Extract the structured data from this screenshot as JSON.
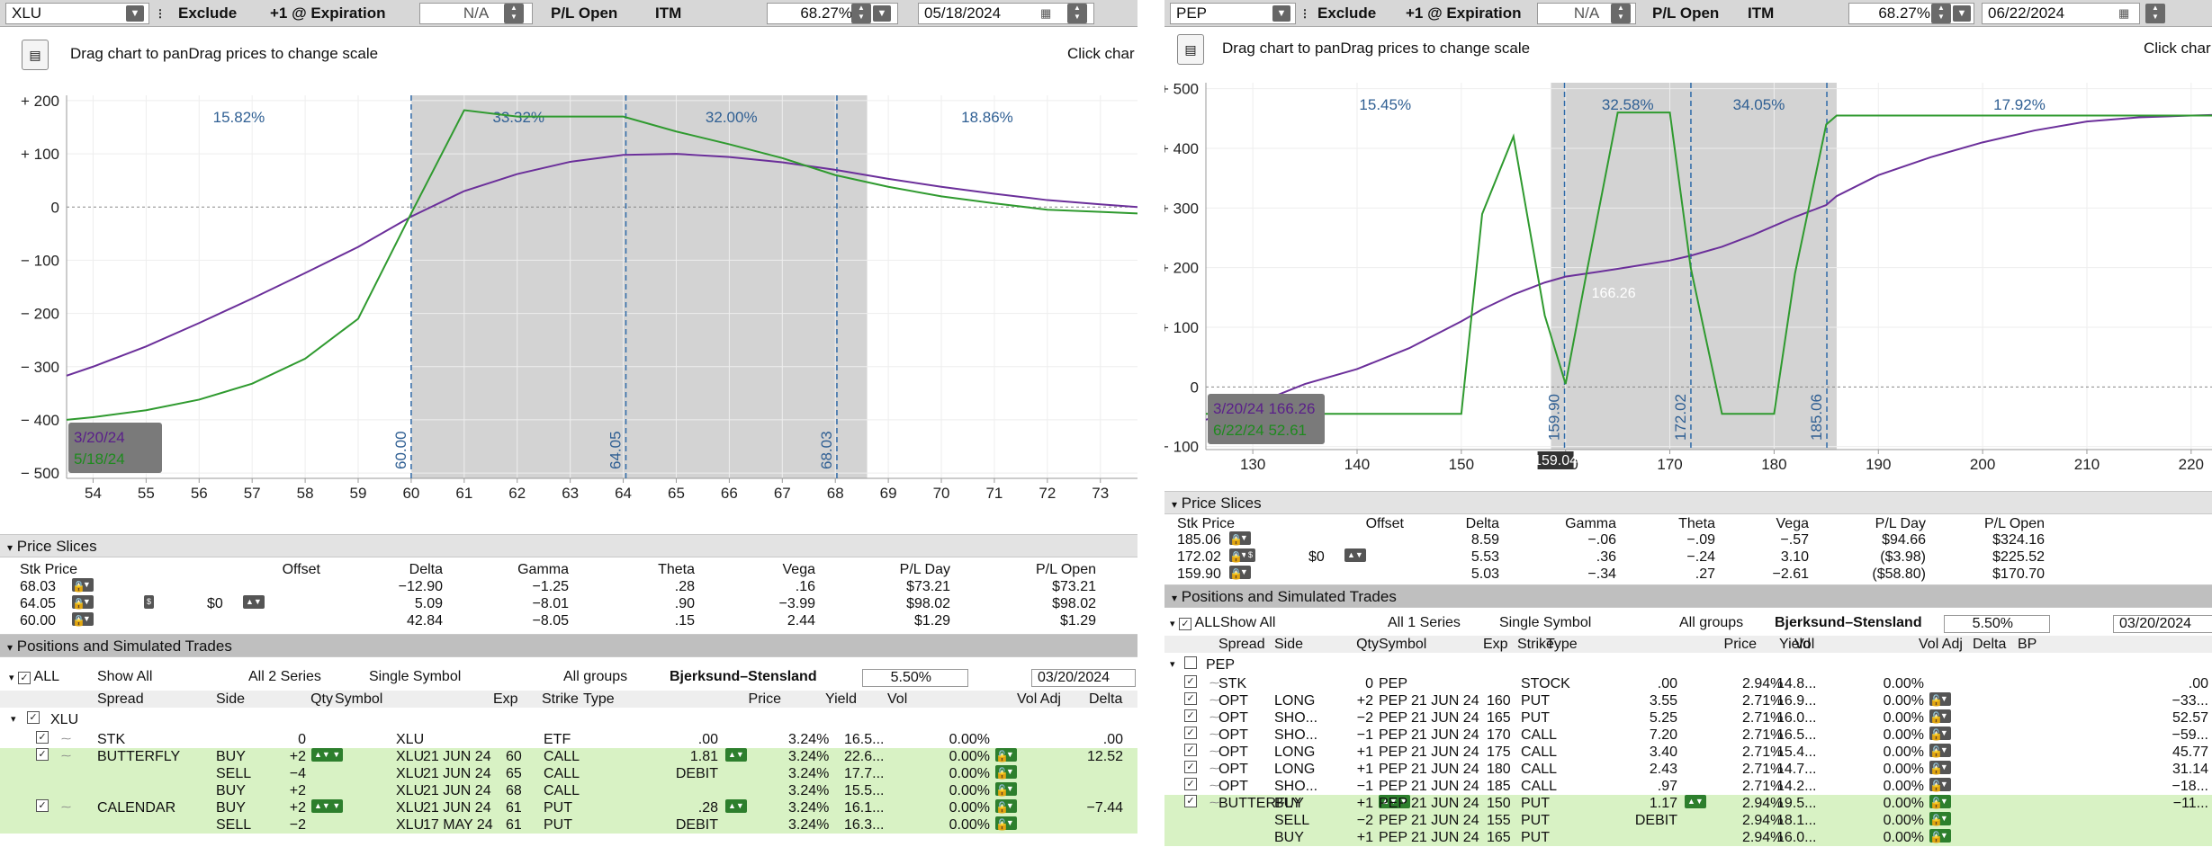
{
  "left": {
    "toolbar": {
      "symbol": "XLU",
      "exclude": "Exclude",
      "expiration": "+1 @ Expiration",
      "na": "N/A",
      "pl": "P/L Open",
      "itm": "ITM",
      "pct": "68.27%",
      "date": "05/18/2024"
    },
    "hint": {
      "drag": "Drag chart to panDrag prices to change scale",
      "click": "Click char"
    },
    "chart_data": {
      "type": "line",
      "x": [
        53.5,
        54,
        55,
        56,
        57,
        58,
        59,
        60,
        61,
        62,
        63,
        64,
        65,
        66,
        67,
        68,
        69,
        70,
        71,
        72,
        73,
        73.7
      ],
      "xticks": [
        "54",
        "55",
        "56",
        "57",
        "58",
        "59",
        "60",
        "61",
        "62",
        "63",
        "64",
        "65",
        "66",
        "67",
        "68",
        "69",
        "70",
        "71",
        "72",
        "73"
      ],
      "yticks": [
        "+ 200",
        "+ 100",
        "0",
        "− 100",
        "− 200",
        "− 300",
        "− 400",
        "− 500"
      ],
      "ylim": [
        -510,
        210
      ],
      "series": [
        {
          "values": [
            -317,
            -300,
            -262,
            -218,
            -172,
            -124,
            -75,
            -18,
            30,
            62,
            85,
            98,
            100,
            94,
            84,
            70,
            53,
            38,
            25,
            13,
            5,
            0
          ]
        },
        {
          "values": [
            -400,
            -395,
            -382,
            -362,
            -332,
            -285,
            -210,
            -12,
            182,
            170,
            170,
            170,
            142,
            118,
            92,
            60,
            38,
            20,
            7,
            -5,
            -9,
            -12
          ]
        }
      ],
      "band": [
        60,
        68.6
      ],
      "strikes": [
        {
          "x": 60,
          "label": "60.00"
        },
        {
          "x": 64.05,
          "label": "64.05"
        },
        {
          "x": 68.03,
          "label": "68.03"
        }
      ],
      "zones": [
        "15.82%",
        "33.32%",
        "32.00%",
        "18.86%"
      ],
      "legend": [
        "3/20/24",
        "5/18/24"
      ]
    },
    "price_slices": {
      "title": "Price Slices",
      "headers": [
        "Stk Price",
        "Offset",
        "Delta",
        "Gamma",
        "Theta",
        "Vega",
        "P/L Day",
        "P/L Open"
      ],
      "offset": "$0",
      "rows": [
        [
          "68.03",
          "−12.90",
          "−1.25",
          ".28",
          ".16",
          "$73.21",
          "$73.21"
        ],
        [
          "64.05",
          "5.09",
          "−8.01",
          ".90",
          "−3.99",
          "$98.02",
          "$98.02"
        ],
        [
          "60.00",
          "42.84",
          "−8.05",
          ".15",
          "2.44",
          "$1.29",
          "$1.29"
        ]
      ]
    },
    "positions": {
      "title": "Positions and Simulated Trades",
      "filters": {
        "all": "ALL",
        "show": "Show All",
        "series": "All 2 Series",
        "sym": "Single Symbol",
        "groups": "All groups",
        "model": "Bjerksund–Stensland",
        "rate": "5.50%",
        "date": "03/20/2024"
      },
      "headers": [
        "Spread",
        "Side",
        "Qty",
        "Symbol",
        "Exp",
        "Strike",
        "Type",
        "Price",
        "Yield",
        "Vol",
        "Vol Adj",
        "Delta"
      ],
      "group": "XLU",
      "rows": [
        {
          "spread": "STK",
          "side": "",
          "qty": "0",
          "sym": "XLU",
          "exp": "",
          "strike": "",
          "type": "ETF",
          "price": ".00",
          "yield": "3.24%",
          "vol": "16.5...",
          "voladj": "0.00%",
          "delta": ".00"
        },
        {
          "spread": "BUTTERFLY",
          "side": "BUY",
          "qty": "+2",
          "sym": "XLU",
          "exp": "21 JUN 24",
          "strike": "60",
          "type": "CALL",
          "price": "1.81",
          "yield": "3.24%",
          "vol": "22.6...",
          "voladj": "0.00%",
          "delta": "12.52"
        },
        {
          "spread": "",
          "side": "SELL",
          "qty": "−4",
          "sym": "XLU",
          "exp": "21 JUN 24",
          "strike": "65",
          "type": "CALL",
          "price": "DEBIT",
          "yield": "3.24%",
          "vol": "17.7...",
          "voladj": "0.00%",
          "delta": ""
        },
        {
          "spread": "",
          "side": "BUY",
          "qty": "+2",
          "sym": "XLU",
          "exp": "21 JUN 24",
          "strike": "68",
          "type": "CALL",
          "price": "",
          "yield": "3.24%",
          "vol": "15.5...",
          "voladj": "0.00%",
          "delta": ""
        },
        {
          "spread": "CALENDAR",
          "side": "BUY",
          "qty": "+2",
          "sym": "XLU",
          "exp": "21 JUN 24",
          "strike": "61",
          "type": "PUT",
          "price": ".28",
          "yield": "3.24%",
          "vol": "16.1...",
          "voladj": "0.00%",
          "delta": "−7.44"
        },
        {
          "spread": "",
          "side": "SELL",
          "qty": "−2",
          "sym": "XLU",
          "exp": "17 MAY 24",
          "strike": "61",
          "type": "PUT",
          "price": "DEBIT",
          "yield": "3.24%",
          "vol": "16.3...",
          "voladj": "0.00%",
          "delta": ""
        }
      ]
    }
  },
  "right": {
    "toolbar": {
      "symbol": "PEP",
      "exclude": "Exclude",
      "expiration": "+1 @ Expiration",
      "na": "N/A",
      "pl": "P/L Open",
      "itm": "ITM",
      "pct": "68.27%",
      "date": "06/22/2024"
    },
    "hint": {
      "drag": "Drag chart to panDrag prices to change scale",
      "click": "Click char"
    },
    "chart_data": {
      "type": "line",
      "x": [
        125.5,
        130,
        135,
        140,
        145,
        150,
        152,
        155,
        158,
        160,
        162,
        165,
        170,
        172,
        175,
        178,
        180,
        182,
        185,
        186,
        190,
        195,
        200,
        205,
        210,
        215,
        220,
        222
      ],
      "xticks": [
        "130",
        "140",
        "150",
        "160",
        "170",
        "180",
        "190",
        "200",
        "210",
        "220"
      ],
      "yticks": [
        "+ 500",
        "+ 400",
        "+ 300",
        "+ 200",
        "+ 100",
        "0",
        "− 100"
      ],
      "ylim": [
        -105,
        510
      ],
      "series": [
        {
          "values": [
            -55,
            -30,
            5,
            30,
            65,
            110,
            130,
            155,
            175,
            185,
            190,
            198,
            212,
            220,
            235,
            255,
            270,
            285,
            305,
            320,
            355,
            385,
            410,
            430,
            445,
            452,
            455,
            456
          ]
        },
        {
          "values": [
            -45,
            -45,
            -45,
            -45,
            -45,
            -45,
            290,
            420,
            120,
            5,
            190,
            460,
            460,
            200,
            -45,
            -45,
            -45,
            190,
            440,
            455,
            455,
            455,
            455,
            455,
            455,
            455,
            455,
            455
          ]
        }
      ],
      "band": [
        158.6,
        186
      ],
      "strikes": [
        {
          "x": 159.9,
          "label": "159.90"
        },
        {
          "x": 172.02,
          "label": "172.02"
        },
        {
          "x": 185.06,
          "label": "185.06"
        }
      ],
      "zones": [
        "15.45%",
        "32.58%",
        "34.05%",
        "17.92%"
      ],
      "legend": [
        "3/20/24  166.26",
        "6/22/24  52.61"
      ],
      "midlabel": "166.26",
      "cursor": "159.04"
    },
    "price_slices": {
      "title": "Price Slices",
      "headers": [
        "Stk Price",
        "Offset",
        "Delta",
        "Gamma",
        "Theta",
        "Vega",
        "P/L Day",
        "P/L Open"
      ],
      "offset": "$0",
      "rows": [
        [
          "185.06",
          "8.59",
          "−.06",
          "−.09",
          "−.57",
          "$94.66",
          "$324.16"
        ],
        [
          "172.02",
          "5.53",
          ".36",
          "−.24",
          "3.10",
          "($3.98)",
          "$225.52"
        ],
        [
          "159.90",
          "5.03",
          "−.34",
          ".27",
          "−2.61",
          "($58.80)",
          "$170.70"
        ]
      ]
    },
    "positions": {
      "title": "Positions and Simulated Trades",
      "filters": {
        "all": "ALL",
        "show": "Show All",
        "series": "All 1 Series",
        "sym": "Single Symbol",
        "groups": "All groups",
        "model": "Bjerksund–Stensland",
        "rate": "5.50%",
        "date": "03/20/2024"
      },
      "headers": [
        "Spread",
        "Side",
        "Qty",
        "Symbol",
        "Exp",
        "Strike",
        "Type",
        "Price",
        "Yield",
        "Vol",
        "Vol Adj",
        "Delta",
        "BP"
      ],
      "group": "PEP",
      "rows": [
        {
          "spread": "STK",
          "side": "",
          "qty": "0",
          "sym": "PEP",
          "exp": "",
          "strike": "",
          "type": "STOCK",
          "price": ".00",
          "yield": "2.94%",
          "vol": "14.8...",
          "voladj": "0.00%",
          "delta": ".00"
        },
        {
          "spread": "OPT",
          "side": "LONG",
          "qty": "+2",
          "sym": "PEP",
          "exp": "21 JUN 24",
          "strike": "160",
          "type": "PUT",
          "price": "3.55",
          "yield": "2.71%",
          "vol": "16.9...",
          "voladj": "0.00%",
          "delta": "−33..."
        },
        {
          "spread": "OPT",
          "side": "SHO...",
          "qty": "−2",
          "sym": "PEP",
          "exp": "21 JUN 24",
          "strike": "165",
          "type": "PUT",
          "price": "5.25",
          "yield": "2.71%",
          "vol": "16.0...",
          "voladj": "0.00%",
          "delta": "52.57"
        },
        {
          "spread": "OPT",
          "side": "SHO...",
          "qty": "−1",
          "sym": "PEP",
          "exp": "21 JUN 24",
          "strike": "170",
          "type": "CALL",
          "price": "7.20",
          "yield": "2.71%",
          "vol": "16.5...",
          "voladj": "0.00%",
          "delta": "−59..."
        },
        {
          "spread": "OPT",
          "side": "LONG",
          "qty": "+1",
          "sym": "PEP",
          "exp": "21 JUN 24",
          "strike": "175",
          "type": "CALL",
          "price": "3.40",
          "yield": "2.71%",
          "vol": "15.4...",
          "voladj": "0.00%",
          "delta": "45.77"
        },
        {
          "spread": "OPT",
          "side": "LONG",
          "qty": "+1",
          "sym": "PEP",
          "exp": "21 JUN 24",
          "strike": "180",
          "type": "CALL",
          "price": "2.43",
          "yield": "2.71%",
          "vol": "14.7...",
          "voladj": "0.00%",
          "delta": "31.14"
        },
        {
          "spread": "OPT",
          "side": "SHO...",
          "qty": "−1",
          "sym": "PEP",
          "exp": "21 JUN 24",
          "strike": "185",
          "type": "CALL",
          "price": ".97",
          "yield": "2.71%",
          "vol": "14.2...",
          "voladj": "0.00%",
          "delta": "−18..."
        },
        {
          "spread": "BUTTERFLY",
          "side": "BUY",
          "qty": "+1",
          "sym": "PEP",
          "exp": "21 JUN 24",
          "strike": "150",
          "type": "PUT",
          "price": "1.17",
          "yield": "2.94%",
          "vol": "19.5...",
          "voladj": "0.00%",
          "delta": "−11..."
        },
        {
          "spread": "",
          "side": "SELL",
          "qty": "−2",
          "sym": "PEP",
          "exp": "21 JUN 24",
          "strike": "155",
          "type": "PUT",
          "price": "DEBIT",
          "yield": "2.94%",
          "vol": "18.1...",
          "voladj": "0.00%",
          "delta": ""
        },
        {
          "spread": "",
          "side": "BUY",
          "qty": "+1",
          "sym": "PEP",
          "exp": "21 JUN 24",
          "strike": "165",
          "type": "PUT",
          "price": "",
          "yield": "2.94%",
          "vol": "16.0...",
          "voladj": "0.00%",
          "delta": ""
        }
      ]
    }
  }
}
